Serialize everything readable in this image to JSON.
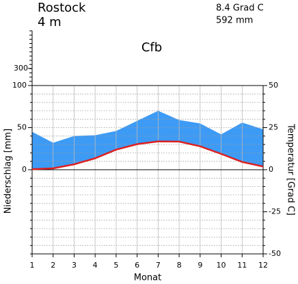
{
  "chart_data": {
    "type": "climate",
    "title": "Rostock",
    "elevation": "4 m",
    "mean_temperature": "8.4 Grad C",
    "annual_precipitation": "592 mm",
    "climate_class": "Cfb",
    "xlabel": "Monat",
    "ylabel": "Niederschlag [mm]",
    "y2label": "Temperatur [Grad C]",
    "x": [
      1,
      2,
      3,
      4,
      5,
      6,
      7,
      8,
      9,
      10,
      11,
      12
    ],
    "xlim": [
      1,
      12
    ],
    "xticks": [
      1,
      2,
      3,
      4,
      5,
      6,
      7,
      8,
      9,
      10,
      11,
      12
    ],
    "series": [
      {
        "color": "#3d9bf5",
        "values": [
          45,
          32,
          40,
          41,
          46,
          58,
          70,
          59,
          55,
          42,
          56,
          48
        ]
      },
      {
        "color": "#dd2020",
        "axis": "y2",
        "values": [
          0.3,
          0.8,
          3.2,
          6.8,
          11.9,
          15.2,
          16.8,
          16.7,
          13.9,
          9.4,
          4.6,
          1.9
        ]
      }
    ],
    "ylim": [
      -100,
      100
    ],
    "yticks": [
      0,
      50,
      100
    ],
    "upper_ylim": [
      100,
      740
    ],
    "upper_yticks": [
      300
    ],
    "y2lim": [
      -50,
      50
    ],
    "y2ticks": [
      -50,
      -25,
      0,
      25,
      50
    ],
    "grid": true
  }
}
